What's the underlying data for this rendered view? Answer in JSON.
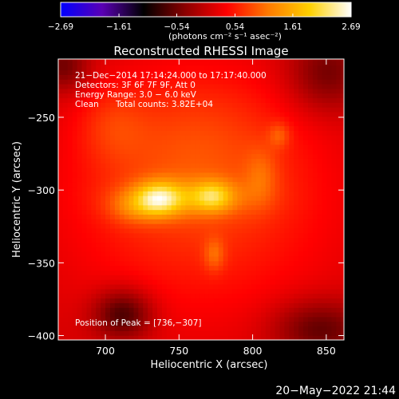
{
  "chart_data": {
    "type": "heatmap",
    "title": "Reconstructed RHESSI Image",
    "xlabel": "Heliocentric X (arcsec)",
    "ylabel": "Heliocentric Y (arcsec)",
    "xlim": [
      668,
      862
    ],
    "ylim": [
      -403,
      -210
    ],
    "x_ticks": [
      700,
      750,
      800,
      850
    ],
    "y_ticks": [
      -250,
      -300,
      -350,
      -400
    ],
    "x_tick_labels": [
      "700",
      "750",
      "800",
      "850"
    ],
    "y_tick_labels": [
      "−250",
      "−300",
      "−350",
      "−400"
    ],
    "colorbar": {
      "range": [
        -2.69,
        2.69
      ],
      "ticks": [
        -2.69,
        -1.61,
        -0.54,
        0.54,
        1.61,
        2.69
      ],
      "tick_labels": [
        "−2.69",
        "−1.61",
        "−0.54",
        "0.54",
        "1.61",
        "2.69"
      ],
      "unit_label": "(photons cm⁻² s⁻¹ asec⁻²)",
      "colormap": [
        "#0000ff",
        "#5a00b4",
        "#000000",
        "#8b0000",
        "#ff0000",
        "#ff7a00",
        "#ffd000",
        "#ffffff"
      ]
    },
    "annotations": [
      "21−Dec−2014 17:14:24.000 to 17:17:40.000",
      "Detectors: 3F 6F 7F 9F, Att 0",
      "Energy Range: 3.0 − 6.0 keV",
      "Clean",
      "Total counts: 3.82E+04"
    ],
    "peak_label": "Position of Peak = [736,−307]",
    "peak": {
      "x": 736,
      "y": -307,
      "value": 2.69
    },
    "sources": [
      {
        "x": 736,
        "y": -306,
        "sx": 11,
        "sy": 8,
        "amp": 1.2
      },
      {
        "x": 773,
        "y": -304,
        "sx": 9,
        "sy": 7,
        "amp": 0.85
      },
      {
        "x": 755,
        "y": -305,
        "sx": 30,
        "sy": 9,
        "amp": 0.55
      },
      {
        "x": 718,
        "y": -312,
        "sx": 12,
        "sy": 8,
        "amp": 0.4
      },
      {
        "x": 774,
        "y": -344,
        "sx": 5,
        "sy": 8,
        "amp": 0.45
      },
      {
        "x": 818,
        "y": -262,
        "sx": 5,
        "sy": 6,
        "amp": 0.4
      },
      {
        "x": 806,
        "y": -290,
        "sx": 8,
        "sy": 14,
        "amp": 0.35
      },
      {
        "x": 705,
        "y": -255,
        "sx": 16,
        "sy": 18,
        "amp": 0.3
      },
      {
        "x": 760,
        "y": -270,
        "sx": 45,
        "sy": 40,
        "amp": 0.35
      },
      {
        "x": 765,
        "y": -310,
        "sx": 80,
        "sy": 70,
        "amp": 0.55
      }
    ],
    "dark_regions": [
      {
        "x": 712,
        "y": -385,
        "sx": 14,
        "sy": 12,
        "amp": -0.9
      },
      {
        "x": 845,
        "y": -395,
        "sx": 22,
        "sy": 14,
        "amp": -0.7
      },
      {
        "x": 850,
        "y": -220,
        "sx": 18,
        "sy": 18,
        "amp": -0.6
      },
      {
        "x": 672,
        "y": -215,
        "sx": 12,
        "sy": 12,
        "amp": -0.6
      }
    ],
    "grid": false,
    "legend": "none"
  },
  "footer_date": "20−May−2022 21:44"
}
